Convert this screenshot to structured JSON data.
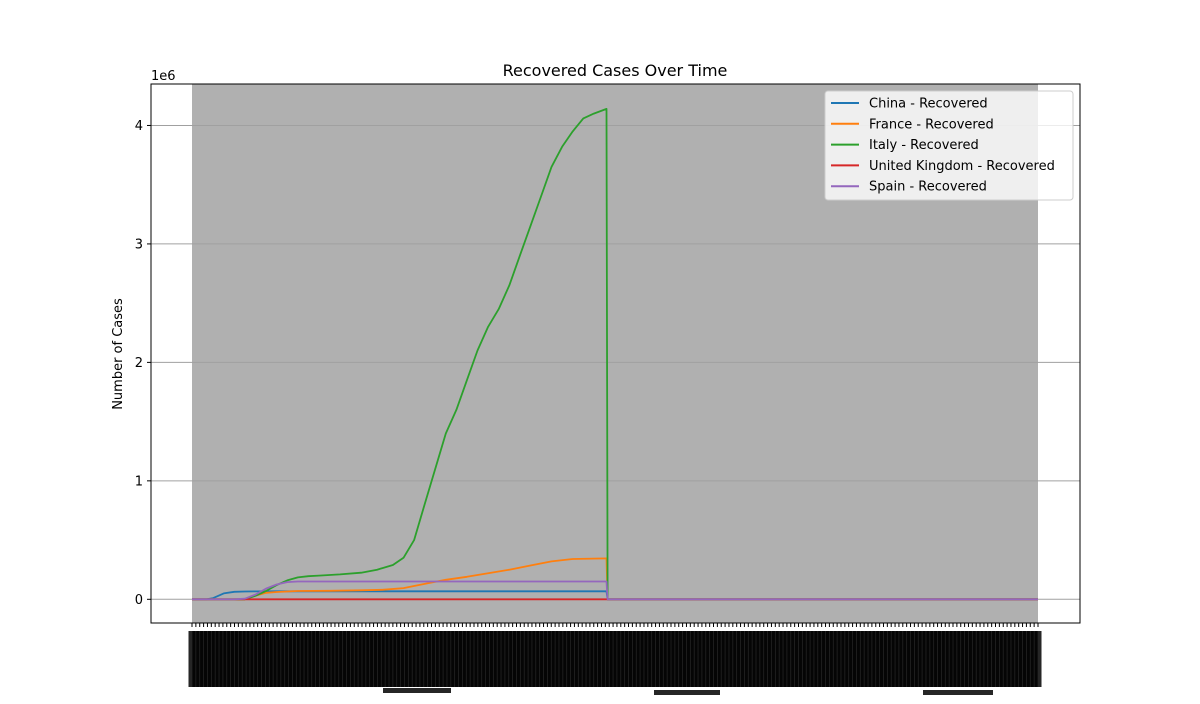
{
  "chart_data": {
    "type": "line",
    "title": "Recovered Cases Over Time",
    "xlabel": "",
    "ylabel": "Number of Cases",
    "y_scale_label": "1e6",
    "y_scale_factor": 1000000,
    "ylim": [
      -200000,
      4350000
    ],
    "yticks": [
      0,
      1,
      2,
      3,
      4
    ],
    "x_range": [
      0,
      800
    ],
    "x_tick_count": 220,
    "x_tick_labels_note": "",
    "grid": true,
    "grid_axis": "y",
    "plot_background": "#b0b0b0",
    "legend_position": "top-right",
    "series": [
      {
        "name": "China - Recovered",
        "color": "#1f77b4",
        "points": [
          [
            0,
            0
          ],
          [
            14,
            0
          ],
          [
            20,
            10000
          ],
          [
            30,
            50000
          ],
          [
            40,
            63000
          ],
          [
            50,
            66000
          ],
          [
            60,
            67000
          ],
          [
            80,
            67500
          ],
          [
            200,
            67800
          ],
          [
            392,
            68000
          ],
          [
            393,
            0
          ],
          [
            800,
            0
          ]
        ]
      },
      {
        "name": "France - Recovered",
        "color": "#ff7f0e",
        "points": [
          [
            0,
            0
          ],
          [
            50,
            0
          ],
          [
            60,
            30000
          ],
          [
            70,
            55000
          ],
          [
            80,
            62000
          ],
          [
            100,
            70000
          ],
          [
            130,
            72000
          ],
          [
            160,
            76000
          ],
          [
            180,
            80000
          ],
          [
            200,
            95000
          ],
          [
            220,
            130000
          ],
          [
            240,
            165000
          ],
          [
            260,
            190000
          ],
          [
            280,
            220000
          ],
          [
            300,
            250000
          ],
          [
            320,
            285000
          ],
          [
            340,
            320000
          ],
          [
            360,
            340000
          ],
          [
            392,
            345000
          ],
          [
            393,
            0
          ],
          [
            800,
            0
          ]
        ]
      },
      {
        "name": "Italy - Recovered",
        "color": "#2ca02c",
        "points": [
          [
            0,
            0
          ],
          [
            50,
            0
          ],
          [
            60,
            30000
          ],
          [
            70,
            70000
          ],
          [
            80,
            120000
          ],
          [
            90,
            160000
          ],
          [
            100,
            185000
          ],
          [
            110,
            195000
          ],
          [
            120,
            200000
          ],
          [
            140,
            210000
          ],
          [
            160,
            225000
          ],
          [
            175,
            250000
          ],
          [
            190,
            290000
          ],
          [
            200,
            350000
          ],
          [
            210,
            500000
          ],
          [
            220,
            800000
          ],
          [
            230,
            1100000
          ],
          [
            240,
            1400000
          ],
          [
            250,
            1600000
          ],
          [
            260,
            1850000
          ],
          [
            270,
            2100000
          ],
          [
            280,
            2300000
          ],
          [
            290,
            2450000
          ],
          [
            300,
            2650000
          ],
          [
            310,
            2900000
          ],
          [
            320,
            3150000
          ],
          [
            330,
            3400000
          ],
          [
            340,
            3650000
          ],
          [
            350,
            3820000
          ],
          [
            360,
            3950000
          ],
          [
            370,
            4060000
          ],
          [
            380,
            4100000
          ],
          [
            392,
            4140000
          ],
          [
            393,
            0
          ],
          [
            800,
            0
          ]
        ]
      },
      {
        "name": "United Kingdom - Recovered",
        "color": "#d62728",
        "points": [
          [
            0,
            0
          ],
          [
            392,
            0
          ],
          [
            393,
            0
          ],
          [
            800,
            0
          ]
        ]
      },
      {
        "name": "Spain - Recovered",
        "color": "#9467bd",
        "points": [
          [
            0,
            0
          ],
          [
            40,
            0
          ],
          [
            50,
            5000
          ],
          [
            60,
            40000
          ],
          [
            70,
            90000
          ],
          [
            80,
            125000
          ],
          [
            90,
            145000
          ],
          [
            100,
            150000
          ],
          [
            392,
            150000
          ],
          [
            393,
            0
          ],
          [
            800,
            0
          ]
        ]
      }
    ]
  }
}
